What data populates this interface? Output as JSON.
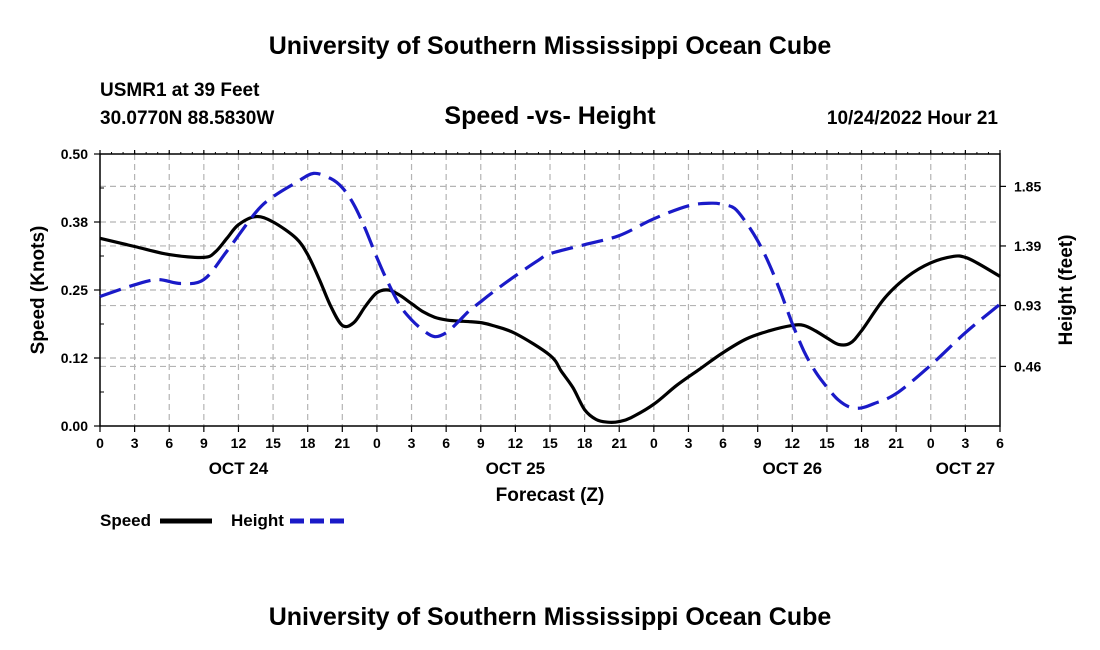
{
  "chart_data": {
    "type": "line",
    "title": "University of Southern Mississippi Ocean Cube",
    "footer_title": "University of Southern Mississippi Ocean Cube",
    "station": "USMR1 at 39 Feet",
    "location": "30.0770N  88.5830W",
    "subtitle": "Speed -vs- Height",
    "timestamp": "10/24/2022 Hour 21",
    "xlabel": "Forecast (Z)",
    "ylabel_left": "Speed (Knots)",
    "ylabel_right": "Height (feet)",
    "x_unit": "hours since OCT 24 00Z",
    "xlim": [
      0,
      78
    ],
    "ylim_left": [
      0,
      0.5
    ],
    "ylim_right": [
      0,
      2.1
    ],
    "left_ticks": [
      {
        "value": 0,
        "label": "0.00"
      },
      {
        "value": 0.125,
        "label": "0.12"
      },
      {
        "value": 0.25,
        "label": "0.25"
      },
      {
        "value": 0.375,
        "label": "0.38"
      },
      {
        "value": 0.5,
        "label": "0.50"
      }
    ],
    "right_ticks": [
      {
        "value": 0.46,
        "label": "0.46"
      },
      {
        "value": 0.93,
        "label": "0.93"
      },
      {
        "value": 1.39,
        "label": "1.39"
      },
      {
        "value": 1.85,
        "label": "1.85"
      }
    ],
    "x_ticks": [
      {
        "value": 0,
        "label": "0"
      },
      {
        "value": 3,
        "label": "3"
      },
      {
        "value": 6,
        "label": "6"
      },
      {
        "value": 9,
        "label": "9"
      },
      {
        "value": 12,
        "label": "12"
      },
      {
        "value": 15,
        "label": "15"
      },
      {
        "value": 18,
        "label": "18"
      },
      {
        "value": 21,
        "label": "21"
      },
      {
        "value": 24,
        "label": "0"
      },
      {
        "value": 27,
        "label": "3"
      },
      {
        "value": 30,
        "label": "6"
      },
      {
        "value": 33,
        "label": "9"
      },
      {
        "value": 36,
        "label": "12"
      },
      {
        "value": 39,
        "label": "15"
      },
      {
        "value": 42,
        "label": "18"
      },
      {
        "value": 45,
        "label": "21"
      },
      {
        "value": 48,
        "label": "0"
      },
      {
        "value": 51,
        "label": "3"
      },
      {
        "value": 54,
        "label": "6"
      },
      {
        "value": 57,
        "label": "9"
      },
      {
        "value": 60,
        "label": "12"
      },
      {
        "value": 63,
        "label": "15"
      },
      {
        "value": 66,
        "label": "18"
      },
      {
        "value": 69,
        "label": "21"
      },
      {
        "value": 72,
        "label": "0"
      },
      {
        "value": 75,
        "label": "3"
      },
      {
        "value": 78,
        "label": "6"
      }
    ],
    "date_labels": [
      {
        "value": 12,
        "label": "OCT 24"
      },
      {
        "value": 36,
        "label": "OCT 25"
      },
      {
        "value": 60,
        "label": "OCT 26"
      },
      {
        "value": 75,
        "label": "OCT 27"
      }
    ],
    "grid": true,
    "legend_position": "bottom-left",
    "series": [
      {
        "name": "Speed",
        "axis": "left",
        "color": "#000000",
        "dash": "solid",
        "x": [
          0,
          3,
          6,
          9,
          10,
          11,
          12,
          13.5,
          15,
          17,
          18,
          19,
          20,
          21,
          22,
          23,
          24,
          25,
          26,
          27,
          28,
          29,
          30,
          31,
          32,
          33,
          34,
          36,
          39,
          40,
          41,
          42,
          43,
          44,
          45,
          46,
          48,
          50,
          52,
          54,
          56,
          58,
          60,
          61,
          62,
          63,
          64,
          65,
          66,
          68,
          70,
          72,
          74,
          75,
          76,
          78
        ],
        "y": [
          0.345,
          0.33,
          0.315,
          0.31,
          0.32,
          0.345,
          0.37,
          0.385,
          0.375,
          0.345,
          0.315,
          0.27,
          0.22,
          0.185,
          0.19,
          0.22,
          0.245,
          0.25,
          0.24,
          0.225,
          0.21,
          0.2,
          0.195,
          0.193,
          0.192,
          0.19,
          0.185,
          0.17,
          0.13,
          0.1,
          0.07,
          0.03,
          0.012,
          0.007,
          0.008,
          0.015,
          0.04,
          0.075,
          0.105,
          0.135,
          0.16,
          0.175,
          0.185,
          0.185,
          0.175,
          0.162,
          0.15,
          0.152,
          0.175,
          0.235,
          0.275,
          0.3,
          0.312,
          0.31,
          0.3,
          0.275
        ]
      },
      {
        "name": "Height",
        "axis": "right",
        "color": "#1a1ac8",
        "dash": "dashed",
        "x": [
          0,
          3,
          5,
          7,
          9,
          11,
          13.5,
          15,
          17,
          18.5,
          20,
          21,
          22,
          23,
          24,
          25,
          26,
          27,
          28,
          29,
          30,
          31,
          32,
          33,
          34,
          36,
          38,
          39,
          42,
          45,
          48,
          51,
          53,
          54,
          55,
          56,
          57,
          58,
          59,
          60,
          61,
          62,
          63,
          64,
          65,
          66,
          67,
          69,
          72,
          75,
          78
        ],
        "y": [
          1.0,
          1.09,
          1.13,
          1.1,
          1.13,
          1.35,
          1.65,
          1.77,
          1.88,
          1.95,
          1.91,
          1.84,
          1.71,
          1.52,
          1.3,
          1.1,
          0.93,
          0.82,
          0.74,
          0.69,
          0.72,
          0.8,
          0.89,
          0.96,
          1.03,
          1.16,
          1.28,
          1.33,
          1.4,
          1.47,
          1.6,
          1.7,
          1.72,
          1.71,
          1.68,
          1.57,
          1.43,
          1.25,
          1.03,
          0.79,
          0.58,
          0.42,
          0.3,
          0.2,
          0.145,
          0.14,
          0.17,
          0.25,
          0.47,
          0.72,
          0.94
        ]
      }
    ]
  }
}
